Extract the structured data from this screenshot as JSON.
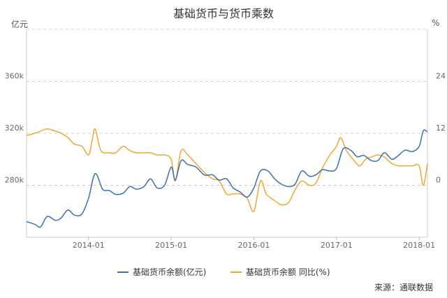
{
  "chart_data": {
    "type": "line",
    "title": "基础货币与货币乘数",
    "left_axis_unit": "亿元",
    "right_axis_unit": "%",
    "y_left": {
      "min": 240,
      "max": 400,
      "ticks": [
        {
          "v": 280,
          "label": "280k"
        },
        {
          "v": 320,
          "label": "320k"
        },
        {
          "v": 360,
          "label": "360k"
        }
      ]
    },
    "y_right": {
      "min": -12,
      "max": 36,
      "ticks": [
        {
          "v": 0,
          "label": "0"
        },
        {
          "v": 12,
          "label": "12"
        },
        {
          "v": 24,
          "label": "24"
        }
      ]
    },
    "x": {
      "min": 2013.25,
      "max": 2018.1,
      "ticks": [
        {
          "v": 2014.0,
          "label": "2014-01"
        },
        {
          "v": 2015.0,
          "label": "2015-01"
        },
        {
          "v": 2016.0,
          "label": "2016-01"
        },
        {
          "v": 2017.0,
          "label": "2017-01"
        },
        {
          "v": 2018.0,
          "label": "2018-01"
        }
      ]
    },
    "grid": true,
    "legend_position": "bottom",
    "series": [
      {
        "name": "基础货币余额(亿元)",
        "axis": "left",
        "color": "#3b6fb6",
        "points": [
          [
            2013.25,
            252
          ],
          [
            2013.35,
            250
          ],
          [
            2013.42,
            248
          ],
          [
            2013.5,
            256
          ],
          [
            2013.6,
            253
          ],
          [
            2013.67,
            255
          ],
          [
            2013.75,
            261
          ],
          [
            2013.83,
            257
          ],
          [
            2013.92,
            258
          ],
          [
            2014.0,
            270
          ],
          [
            2014.08,
            289
          ],
          [
            2014.17,
            277
          ],
          [
            2014.25,
            276
          ],
          [
            2014.33,
            273
          ],
          [
            2014.42,
            274
          ],
          [
            2014.5,
            279
          ],
          [
            2014.58,
            277
          ],
          [
            2014.67,
            279
          ],
          [
            2014.75,
            285
          ],
          [
            2014.83,
            278
          ],
          [
            2014.92,
            280
          ],
          [
            2015.0,
            294
          ],
          [
            2015.05,
            284
          ],
          [
            2015.12,
            299
          ],
          [
            2015.2,
            296
          ],
          [
            2015.3,
            294
          ],
          [
            2015.4,
            288
          ],
          [
            2015.5,
            288
          ],
          [
            2015.58,
            284
          ],
          [
            2015.67,
            285
          ],
          [
            2015.75,
            278
          ],
          [
            2015.83,
            275
          ],
          [
            2015.92,
            271
          ],
          [
            2016.0,
            278
          ],
          [
            2016.08,
            291
          ],
          [
            2016.17,
            291
          ],
          [
            2016.25,
            285
          ],
          [
            2016.33,
            281
          ],
          [
            2016.42,
            279
          ],
          [
            2016.5,
            281
          ],
          [
            2016.58,
            291
          ],
          [
            2016.67,
            287
          ],
          [
            2016.75,
            288
          ],
          [
            2016.83,
            292
          ],
          [
            2016.92,
            291
          ],
          [
            2017.0,
            293
          ],
          [
            2017.08,
            308
          ],
          [
            2017.17,
            307
          ],
          [
            2017.25,
            302
          ],
          [
            2017.33,
            303
          ],
          [
            2017.42,
            299
          ],
          [
            2017.5,
            299
          ],
          [
            2017.58,
            305
          ],
          [
            2017.67,
            300
          ],
          [
            2017.75,
            303
          ],
          [
            2017.83,
            307
          ],
          [
            2017.92,
            306
          ],
          [
            2018.0,
            310
          ],
          [
            2018.05,
            322
          ],
          [
            2018.1,
            321
          ]
        ]
      },
      {
        "name": "基础货币余额 同比(%)",
        "axis": "right",
        "color": "#f0a830",
        "points": [
          [
            2013.25,
            11.5
          ],
          [
            2013.35,
            12
          ],
          [
            2013.42,
            12.5
          ],
          [
            2013.5,
            13
          ],
          [
            2013.6,
            12.5
          ],
          [
            2013.67,
            12
          ],
          [
            2013.75,
            11
          ],
          [
            2013.83,
            9.5
          ],
          [
            2013.92,
            9
          ],
          [
            2014.0,
            7
          ],
          [
            2014.04,
            10
          ],
          [
            2014.08,
            13
          ],
          [
            2014.15,
            8
          ],
          [
            2014.25,
            7.5
          ],
          [
            2014.33,
            7.5
          ],
          [
            2014.42,
            9
          ],
          [
            2014.5,
            8
          ],
          [
            2014.58,
            7.5
          ],
          [
            2014.67,
            7.5
          ],
          [
            2014.75,
            7.5
          ],
          [
            2014.83,
            7
          ],
          [
            2014.92,
            7
          ],
          [
            2015.0,
            6
          ],
          [
            2015.05,
            1
          ],
          [
            2015.12,
            8
          ],
          [
            2015.2,
            7
          ],
          [
            2015.3,
            5
          ],
          [
            2015.4,
            3
          ],
          [
            2015.5,
            1.5
          ],
          [
            2015.58,
            1
          ],
          [
            2015.67,
            -2
          ],
          [
            2015.75,
            -2
          ],
          [
            2015.83,
            -2
          ],
          [
            2015.92,
            -3
          ],
          [
            2016.0,
            -6
          ],
          [
            2016.08,
            1
          ],
          [
            2016.15,
            -2
          ],
          [
            2016.25,
            -3.5
          ],
          [
            2016.33,
            -4.5
          ],
          [
            2016.42,
            -4
          ],
          [
            2016.5,
            -1
          ],
          [
            2016.58,
            1
          ],
          [
            2016.67,
            0
          ],
          [
            2016.75,
            0.5
          ],
          [
            2016.83,
            4
          ],
          [
            2016.92,
            7
          ],
          [
            2017.0,
            9
          ],
          [
            2017.05,
            11
          ],
          [
            2017.12,
            8
          ],
          [
            2017.2,
            6
          ],
          [
            2017.28,
            4.5
          ],
          [
            2017.35,
            6
          ],
          [
            2017.42,
            6.5
          ],
          [
            2017.5,
            7
          ],
          [
            2017.58,
            6.5
          ],
          [
            2017.67,
            5
          ],
          [
            2017.75,
            4.5
          ],
          [
            2017.83,
            4.5
          ],
          [
            2017.92,
            4.5
          ],
          [
            2018.0,
            4.5
          ],
          [
            2018.05,
            0
          ],
          [
            2018.1,
            5
          ]
        ]
      }
    ]
  },
  "source_text": "来源：通联数据"
}
